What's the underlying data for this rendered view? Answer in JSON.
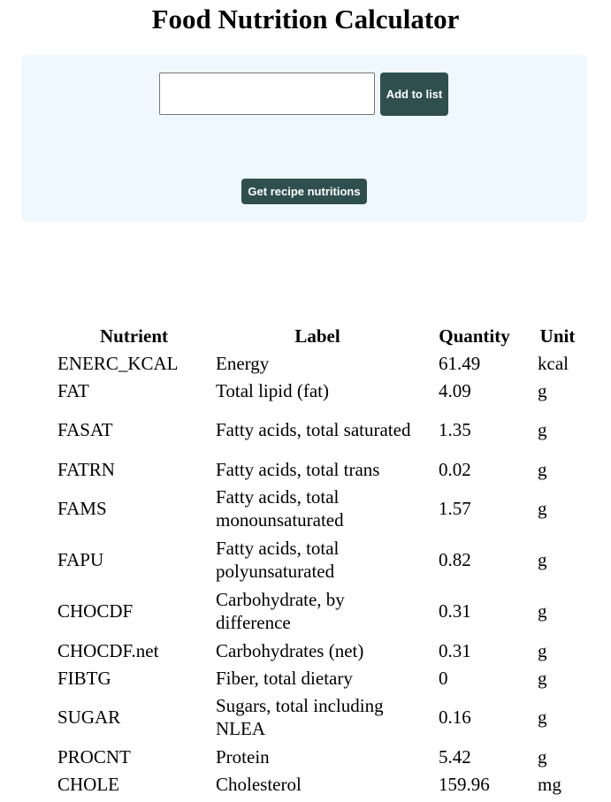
{
  "page": {
    "title": "Food Nutrition Calculator"
  },
  "form": {
    "food_input_value": "",
    "add_button_label": "Add to list",
    "recipe_button_label": "Get recipe nutritions",
    "panel_color": "#f0f8ff",
    "button_color": "#2f4f4f"
  },
  "table": {
    "headers": [
      "Nutrient",
      "Label",
      "Quantity",
      "Unit"
    ],
    "rows": [
      {
        "nutrient": "ENERC_KCAL",
        "label": "Energy",
        "quantity": "61.49",
        "unit": "kcal"
      },
      {
        "nutrient": "FAT",
        "label": "Total lipid (fat)",
        "quantity": "4.09",
        "unit": "g"
      },
      {
        "nutrient": "FASAT",
        "label": "Fatty acids, total saturated",
        "quantity": "1.35",
        "unit": "g"
      },
      {
        "nutrient": "FATRN",
        "label": "Fatty acids, total trans",
        "quantity": "0.02",
        "unit": "g"
      },
      {
        "nutrient": "FAMS",
        "label": "Fatty acids, total monounsaturated",
        "quantity": "1.57",
        "unit": "g"
      },
      {
        "nutrient": "FAPU",
        "label": "Fatty acids, total polyunsaturated",
        "quantity": "0.82",
        "unit": "g"
      },
      {
        "nutrient": "CHOCDF",
        "label": "Carbohydrate, by difference",
        "quantity": "0.31",
        "unit": "g"
      },
      {
        "nutrient": "CHOCDF.net",
        "label": "Carbohydrates (net)",
        "quantity": "0.31",
        "unit": "g"
      },
      {
        "nutrient": "FIBTG",
        "label": "Fiber, total dietary",
        "quantity": "0",
        "unit": "g"
      },
      {
        "nutrient": "SUGAR",
        "label": "Sugars, total including NLEA",
        "quantity": "0.16",
        "unit": "g"
      },
      {
        "nutrient": "PROCNT",
        "label": "Protein",
        "quantity": "5.42",
        "unit": "g"
      },
      {
        "nutrient": "CHOLE",
        "label": "Cholesterol",
        "quantity": "159.96",
        "unit": "mg"
      }
    ]
  }
}
